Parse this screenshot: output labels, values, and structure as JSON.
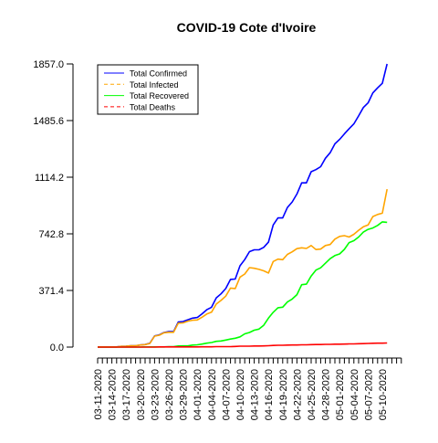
{
  "chart_data": {
    "type": "line",
    "title": "COVID-19 Cote d'Ivoire",
    "xlabel": "",
    "ylabel": "",
    "ylim": [
      0,
      1857.0
    ],
    "y_ticks": [
      0.0,
      371.4,
      742.8,
      1114.2,
      1485.6,
      1857.0
    ],
    "y_tick_labels": [
      "0.0",
      "371.4",
      "742.8",
      "1114.2",
      "1485.6",
      "1857.0"
    ],
    "x_tick_labels": [
      "03-11-2020",
      "03-14-2020",
      "03-17-2020",
      "03-20-2020",
      "03-23-2020",
      "03-26-2020",
      "03-29-2020",
      "04-01-2020",
      "04-04-2020",
      "04-07-2020",
      "04-10-2020",
      "04-13-2020",
      "04-16-2020",
      "04-19-2020",
      "04-22-2020",
      "04-25-2020",
      "04-28-2020",
      "05-01-2020",
      "05-04-2020",
      "05-07-2020",
      "05-10-2020"
    ],
    "x_tick_count": 65,
    "legend_position": "top-left",
    "grid": false,
    "series": [
      {
        "name": "Total Confirmed",
        "color": "#0000ff",
        "line_style": "solid",
        "values": [
          1,
          1,
          1,
          1,
          1,
          5,
          6,
          9,
          9,
          14,
          17,
          25,
          73,
          80,
          96,
          101,
          101,
          165,
          168,
          179,
          190,
          194,
          218,
          245,
          261,
          323,
          349,
          384,
          444,
          446,
          533,
          574,
          626,
          638,
          638,
          654,
          688,
          801,
          847,
          847,
          916,
          952,
          1004,
          1077,
          1077,
          1150,
          1164,
          1183,
          1238,
          1275,
          1333,
          1362,
          1398,
          1432,
          1464,
          1516,
          1571,
          1602,
          1667,
          1700,
          1730,
          1857
        ]
      },
      {
        "name": "Total Infected",
        "color": "#ffa500",
        "line_style": "dashed",
        "values": [
          1,
          1,
          1,
          1,
          1,
          5,
          6,
          9,
          9,
          14,
          16,
          24,
          72,
          78,
          94,
          97,
          97,
          157,
          159,
          170,
          176,
          178,
          196,
          217,
          229,
          282,
          306,
          334,
          387,
          384,
          459,
          479,
          521,
          517,
          510,
          500,
          486,
          561,
          577,
          573,
          608,
          625,
          646,
          651,
          647,
          666,
          640,
          643,
          666,
          673,
          708,
          726,
          731,
          722,
          740,
          766,
          789,
          801,
          856,
          870,
          878,
          1036
        ]
      },
      {
        "name": "Total Recovered",
        "color": "#00ff00",
        "line_style": "solid",
        "values": [
          0,
          0,
          0,
          0,
          0,
          0,
          0,
          0,
          0,
          0,
          1,
          1,
          1,
          1,
          1,
          3,
          3,
          7,
          8,
          8,
          13,
          15,
          20,
          26,
          30,
          38,
          40,
          46,
          53,
          58,
          67,
          87,
          96,
          111,
          118,
          143,
          190,
          228,
          258,
          262,
          296,
          315,
          344,
          409,
          413,
          466,
          505,
          520,
          550,
          580,
          600,
          611,
          641,
          685,
          698,
          722,
          754,
          772,
          781,
          798,
          821,
          818
        ]
      },
      {
        "name": "Total Deaths",
        "color": "#ff0000",
        "line_style": "dashed",
        "values": [
          0,
          0,
          0,
          0,
          0,
          0,
          0,
          0,
          0,
          0,
          0,
          0,
          0,
          1,
          1,
          1,
          1,
          1,
          1,
          1,
          1,
          1,
          2,
          2,
          2,
          3,
          3,
          3,
          3,
          4,
          6,
          6,
          6,
          7,
          7,
          8,
          9,
          11,
          12,
          12,
          13,
          14,
          14,
          15,
          15,
          16,
          17,
          17,
          18,
          18,
          19,
          19,
          20,
          21,
          21,
          22,
          23,
          24,
          25,
          26,
          26,
          27
        ]
      }
    ]
  }
}
